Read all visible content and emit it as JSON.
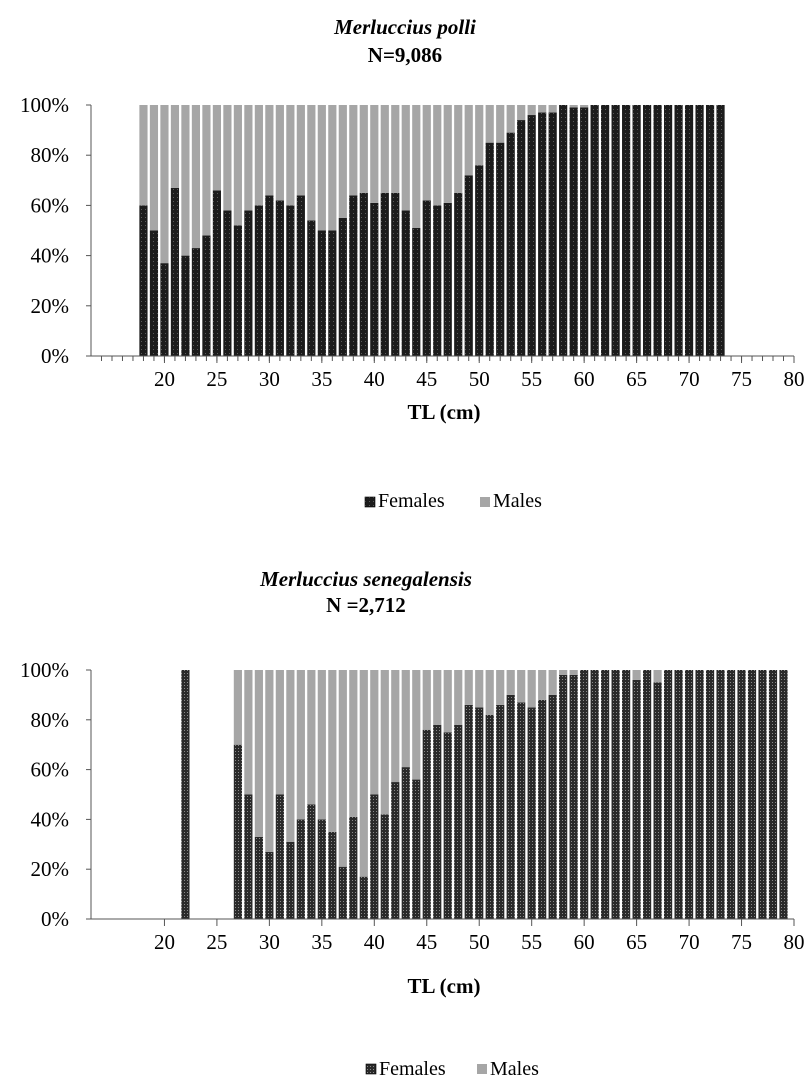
{
  "chart_data": [
    {
      "type": "bar",
      "stacked": true,
      "percent": true,
      "title": "Merluccius polli",
      "subtitle": "N=9,086",
      "xlabel": "TL (cm)",
      "ylabel": "",
      "ylim": [
        0,
        100
      ],
      "yticks": [
        "0%",
        "20%",
        "40%",
        "60%",
        "80%",
        "100%"
      ],
      "xlim": [
        13,
        80
      ],
      "xticks": [
        "20",
        "25",
        "30",
        "35",
        "40",
        "45",
        "50",
        "55",
        "60",
        "65",
        "70",
        "75",
        "80"
      ],
      "legend_position": "bottom",
      "x": [
        18,
        19,
        20,
        21,
        22,
        23,
        24,
        25,
        26,
        27,
        28,
        29,
        30,
        31,
        32,
        33,
        34,
        35,
        36,
        37,
        38,
        39,
        40,
        41,
        42,
        43,
        44,
        45,
        46,
        47,
        48,
        49,
        50,
        51,
        52,
        53,
        54,
        55,
        56,
        57,
        58,
        59,
        60,
        61,
        62,
        63,
        64,
        65,
        66,
        67,
        68,
        69,
        70,
        71,
        72,
        73
      ],
      "series": [
        {
          "name": "Females",
          "color": "#1e1e1e",
          "values": [
            60,
            50,
            37,
            67,
            40,
            43,
            48,
            66,
            58,
            52,
            58,
            60,
            64,
            62,
            60,
            64,
            54,
            50,
            50,
            55,
            64,
            65,
            61,
            65,
            65,
            58,
            51,
            62,
            60,
            61,
            65,
            72,
            76,
            85,
            85,
            89,
            94,
            96,
            97,
            97,
            100,
            99,
            99,
            100,
            100,
            100,
            100,
            100,
            100,
            100,
            100,
            100,
            100,
            100,
            100,
            100
          ]
        },
        {
          "name": "Males",
          "color": "#a6a6a6",
          "values": [
            40,
            50,
            63,
            33,
            60,
            57,
            52,
            34,
            42,
            48,
            42,
            40,
            36,
            38,
            40,
            36,
            46,
            50,
            50,
            45,
            36,
            35,
            39,
            35,
            35,
            42,
            49,
            38,
            40,
            39,
            35,
            28,
            24,
            15,
            15,
            11,
            6,
            4,
            3,
            3,
            0,
            1,
            1,
            0,
            0,
            0,
            0,
            0,
            0,
            0,
            0,
            0,
            0,
            0,
            0,
            0
          ]
        }
      ],
      "legend": [
        "Females",
        "Males"
      ]
    },
    {
      "type": "bar",
      "stacked": true,
      "percent": true,
      "title": "Merluccius senegalensis",
      "subtitle": "N =2,712",
      "xlabel": "TL (cm)",
      "ylabel": "",
      "ylim": [
        0,
        100
      ],
      "yticks": [
        "0%",
        "20%",
        "40%",
        "60%",
        "80%",
        "100%"
      ],
      "xlim": [
        13,
        80
      ],
      "xticks": [
        "20",
        "25",
        "30",
        "35",
        "40",
        "45",
        "50",
        "55",
        "60",
        "65",
        "70",
        "75",
        "80"
      ],
      "legend_position": "bottom",
      "x": [
        22,
        27,
        28,
        29,
        30,
        31,
        32,
        33,
        34,
        35,
        36,
        37,
        38,
        39,
        40,
        41,
        42,
        43,
        44,
        45,
        46,
        47,
        48,
        49,
        50,
        51,
        52,
        53,
        54,
        55,
        56,
        57,
        58,
        59,
        60,
        61,
        62,
        63,
        64,
        65,
        66,
        67,
        68,
        69,
        70,
        71,
        72,
        73,
        74,
        75,
        76,
        77,
        78,
        79
      ],
      "series": [
        {
          "name": "Females",
          "color": "#3a3a3a",
          "values": [
            100,
            70,
            50,
            33,
            27,
            50,
            31,
            40,
            46,
            40,
            35,
            21,
            41,
            17,
            50,
            42,
            55,
            61,
            56,
            76,
            78,
            75,
            78,
            86,
            85,
            82,
            86,
            90,
            87,
            85,
            88,
            90,
            98,
            98,
            100,
            100,
            100,
            100,
            100,
            96,
            100,
            95,
            100,
            100,
            100,
            100,
            100,
            100,
            100,
            100,
            100,
            100,
            100,
            100
          ]
        },
        {
          "name": "Males",
          "color": "#a6a6a6",
          "values": [
            0,
            30,
            50,
            67,
            73,
            50,
            69,
            60,
            54,
            60,
            65,
            79,
            59,
            83,
            50,
            58,
            45,
            39,
            44,
            24,
            22,
            25,
            22,
            14,
            15,
            18,
            14,
            10,
            13,
            15,
            12,
            10,
            2,
            2,
            0,
            0,
            0,
            0,
            0,
            4,
            0,
            5,
            0,
            0,
            0,
            0,
            0,
            0,
            0,
            0,
            0,
            0,
            0,
            0
          ]
        }
      ],
      "legend": [
        "Females",
        "Males"
      ]
    }
  ]
}
